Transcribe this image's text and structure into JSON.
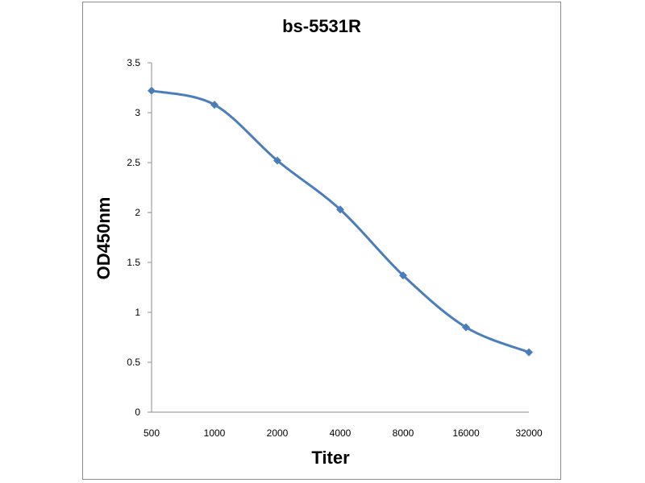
{
  "chart_data": {
    "type": "line",
    "title": "bs-5531R",
    "xlabel": "Titer",
    "ylabel": "OD450nm",
    "categories": [
      "500",
      "1000",
      "2000",
      "4000",
      "8000",
      "16000",
      "32000"
    ],
    "series": [
      {
        "values": [
          3.22,
          3.08,
          2.52,
          2.03,
          1.37,
          0.85,
          0.6
        ]
      }
    ],
    "ylim": [
      0,
      3.5
    ],
    "yticks": [
      "0",
      "0.5",
      "1",
      "1.5",
      "2",
      "2.5",
      "3",
      "3.5"
    ],
    "grid": false,
    "legend": "none",
    "colors": {
      "series": "#4a7ebb",
      "axis": "#8c8c8c"
    }
  }
}
